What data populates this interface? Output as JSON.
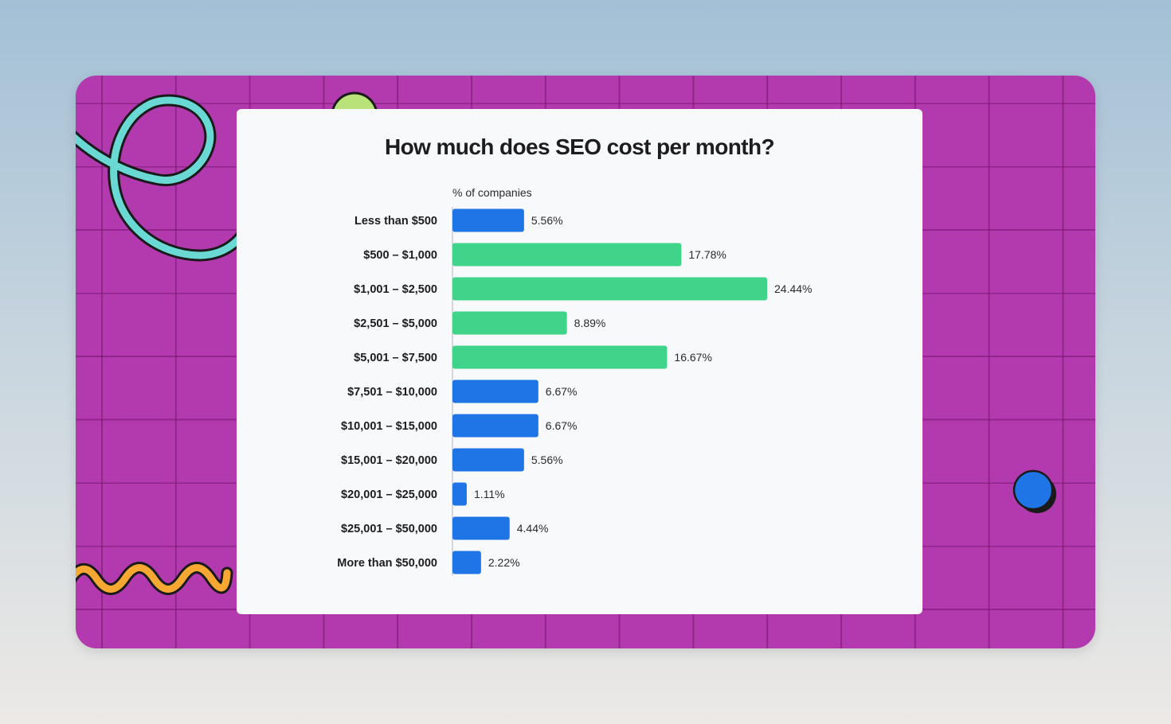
{
  "chart_data": {
    "type": "bar",
    "orientation": "horizontal",
    "title": "How much does SEO cost per month?",
    "xlabel": "% of companies",
    "ylabel": "",
    "categories": [
      "Less than $500",
      "$500 – $1,000",
      "$1,001 – $2,500",
      "$2,501 – $5,000",
      "$5,001 – $7,500",
      "$7,501 – $10,000",
      "$10,001 – $15,000",
      "$15,001 – $20,000",
      "$20,001 – $25,000",
      "$25,001 – $50,000",
      "More than $50,000"
    ],
    "values": [
      5.56,
      17.78,
      24.44,
      8.89,
      16.67,
      6.67,
      6.67,
      5.56,
      1.11,
      4.44,
      2.22
    ],
    "value_labels": [
      "5.56%",
      "17.78%",
      "24.44%",
      "8.89%",
      "16.67%",
      "6.67%",
      "6.67%",
      "5.56%",
      "1.11%",
      "4.44%",
      "2.22%"
    ],
    "bar_colors": [
      "#1f74e6",
      "#3fd489",
      "#3fd489",
      "#3fd489",
      "#3fd489",
      "#1f74e6",
      "#1f74e6",
      "#1f74e6",
      "#1f74e6",
      "#1f74e6",
      "#1f74e6"
    ],
    "xlim": [
      0,
      24.44
    ],
    "grid": false,
    "legend": "none"
  },
  "colors": {
    "slide_background": "#b23aae",
    "card_background": "#f8f9fb",
    "blue_bar": "#1f74e6",
    "green_bar": "#3fd489",
    "squiggle_teal": "#6ad9d4",
    "wave_orange": "#f7a832",
    "circle_blue": "#1f74e6",
    "circle_lime": "#b9e27a"
  },
  "decorations": {
    "top_left": "teal-loop-squiggle",
    "bottom_left": "orange-wave-squiggle",
    "right": "blue-circle",
    "top": "lime-circle"
  }
}
